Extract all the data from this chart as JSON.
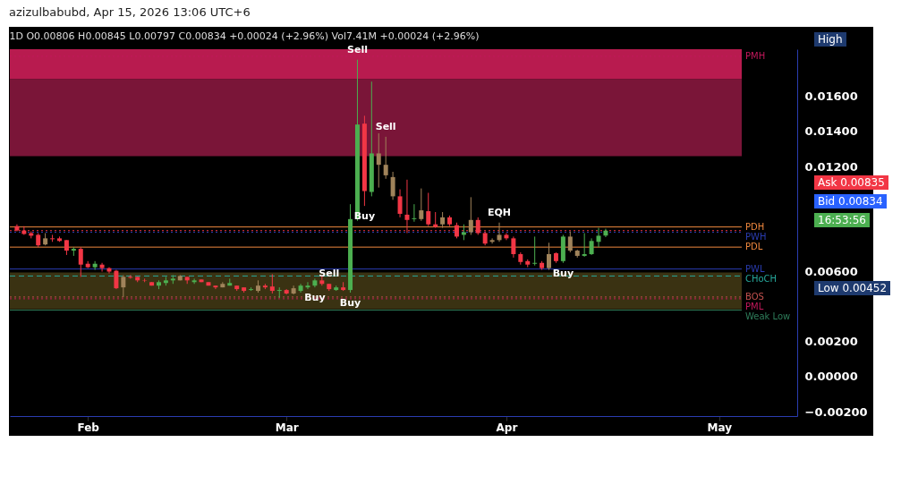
{
  "chart_data": {
    "type": "candlestick",
    "title": "1D O0.00806 H0.00845 L0.00797 C0.00834 +0.00024 (+2.96%) Vol7.41M +0.00024 (+2.96%)",
    "subtitle": "azizulbabubd, Apr 15, 2026 13:06 UTC+6",
    "x": [
      "2026-01-22",
      "2026-01-23",
      "2026-01-24",
      "2026-01-25",
      "2026-01-26",
      "2026-01-27",
      "2026-01-28",
      "2026-01-29",
      "2026-01-30",
      "2026-01-31",
      "2026-02-01",
      "2026-02-02",
      "2026-02-03",
      "2026-02-04",
      "2026-02-05",
      "2026-02-06",
      "2026-02-07",
      "2026-02-08",
      "2026-02-09",
      "2026-02-10",
      "2026-02-11",
      "2026-02-12",
      "2026-02-13",
      "2026-02-14",
      "2026-02-15",
      "2026-02-16",
      "2026-02-17",
      "2026-02-18",
      "2026-02-19",
      "2026-02-20",
      "2026-02-21",
      "2026-02-22",
      "2026-02-23",
      "2026-02-24",
      "2026-02-25",
      "2026-02-26",
      "2026-02-27",
      "2026-02-28",
      "2026-03-01",
      "2026-03-02",
      "2026-03-03",
      "2026-03-04",
      "2026-03-05",
      "2026-03-06",
      "2026-03-07",
      "2026-03-08",
      "2026-03-09",
      "2026-03-10",
      "2026-03-11",
      "2026-03-12",
      "2026-03-13",
      "2026-03-14",
      "2026-03-15",
      "2026-03-16",
      "2026-03-17",
      "2026-03-18",
      "2026-03-19",
      "2026-03-20",
      "2026-03-21",
      "2026-03-22",
      "2026-03-23",
      "2026-03-24",
      "2026-03-25",
      "2026-03-26",
      "2026-03-27",
      "2026-03-28",
      "2026-03-29",
      "2026-03-30",
      "2026-03-31",
      "2026-04-01",
      "2026-04-02",
      "2026-04-03",
      "2026-04-04",
      "2026-04-05",
      "2026-04-06",
      "2026-04-07",
      "2026-04-08",
      "2026-04-09",
      "2026-04-10",
      "2026-04-11",
      "2026-04-12",
      "2026-04-13",
      "2026-04-14",
      "2026-04-15"
    ],
    "ohlc": [
      [
        0.0086,
        0.0087,
        0.0083,
        0.00835
      ],
      [
        0.00835,
        0.0086,
        0.0081,
        0.00815
      ],
      [
        0.0082,
        0.0083,
        0.0079,
        0.00805
      ],
      [
        0.0081,
        0.0082,
        0.0074,
        0.0075
      ],
      [
        0.00755,
        0.0082,
        0.0075,
        0.0079
      ],
      [
        0.0079,
        0.0081,
        0.0077,
        0.00785
      ],
      [
        0.0079,
        0.008,
        0.0077,
        0.00775
      ],
      [
        0.0078,
        0.0078,
        0.00695,
        0.0072
      ],
      [
        0.0072,
        0.0074,
        0.0069,
        0.0073
      ],
      [
        0.0073,
        0.0074,
        0.0057,
        0.0064
      ],
      [
        0.00645,
        0.0066,
        0.0062,
        0.00625
      ],
      [
        0.00625,
        0.0066,
        0.0061,
        0.00645
      ],
      [
        0.0064,
        0.0065,
        0.006,
        0.0062
      ],
      [
        0.0062,
        0.00625,
        0.0059,
        0.006
      ],
      [
        0.00605,
        0.0061,
        0.005,
        0.00505
      ],
      [
        0.0051,
        0.0058,
        0.00455,
        0.0057
      ],
      [
        0.0057,
        0.0058,
        0.0056,
        0.00565
      ],
      [
        0.0057,
        0.0057,
        0.0054,
        0.0055
      ],
      [
        0.0055,
        0.0056,
        0.0054,
        0.00548
      ],
      [
        0.0054,
        0.0054,
        0.0052,
        0.0052
      ],
      [
        0.0052,
        0.0055,
        0.005,
        0.0054
      ],
      [
        0.00535,
        0.0057,
        0.0052,
        0.0055
      ],
      [
        0.0055,
        0.0058,
        0.0053,
        0.0056
      ],
      [
        0.0055,
        0.0058,
        0.0055,
        0.00575
      ],
      [
        0.0057,
        0.0057,
        0.0053,
        0.0055
      ],
      [
        0.0054,
        0.0056,
        0.0053,
        0.0055
      ],
      [
        0.00555,
        0.00555,
        0.0054,
        0.0054
      ],
      [
        0.0054,
        0.0054,
        0.0052,
        0.0052
      ],
      [
        0.0052,
        0.0052,
        0.005,
        0.0051
      ],
      [
        0.0051,
        0.0054,
        0.0051,
        0.0053
      ],
      [
        0.0052,
        0.0056,
        0.0052,
        0.00535
      ],
      [
        0.0052,
        0.0052,
        0.0049,
        0.005
      ],
      [
        0.0051,
        0.0051,
        0.0048,
        0.0049
      ],
      [
        0.00495,
        0.0051,
        0.0049,
        0.005
      ],
      [
        0.0049,
        0.0055,
        0.0048,
        0.0052
      ],
      [
        0.0052,
        0.0053,
        0.005,
        0.0051
      ],
      [
        0.00515,
        0.00585,
        0.00475,
        0.0049
      ],
      [
        0.0049,
        0.0051,
        0.0045,
        0.00495
      ],
      [
        0.00495,
        0.005,
        0.0047,
        0.00475
      ],
      [
        0.00475,
        0.0052,
        0.0047,
        0.00505
      ],
      [
        0.0049,
        0.0053,
        0.0048,
        0.0052
      ],
      [
        0.0051,
        0.0054,
        0.005,
        0.0052
      ],
      [
        0.0052,
        0.0056,
        0.0051,
        0.0055
      ],
      [
        0.0055,
        0.00575,
        0.0052,
        0.0053
      ],
      [
        0.0053,
        0.0053,
        0.0049,
        0.005
      ],
      [
        0.00495,
        0.0052,
        0.0049,
        0.0051
      ],
      [
        0.0051,
        0.0054,
        0.0049,
        0.00495
      ],
      [
        0.00495,
        0.00985,
        0.0048,
        0.009
      ],
      [
        0.009,
        0.0181,
        0.0089,
        0.0144
      ],
      [
        0.01445,
        0.0149,
        0.00975,
        0.0106
      ],
      [
        0.01055,
        0.01685,
        0.0103,
        0.01275
      ],
      [
        0.01275,
        0.0139,
        0.0108,
        0.0121
      ],
      [
        0.0121,
        0.0137,
        0.0113,
        0.0115
      ],
      [
        0.0114,
        0.0117,
        0.0101,
        0.0103
      ],
      [
        0.0103,
        0.0107,
        0.0091,
        0.0093
      ],
      [
        0.00925,
        0.01125,
        0.0082,
        0.00895
      ],
      [
        0.009,
        0.00985,
        0.00885,
        0.00905
      ],
      [
        0.009,
        0.01075,
        0.0089,
        0.0095
      ],
      [
        0.00945,
        0.0105,
        0.0086,
        0.0087
      ],
      [
        0.0087,
        0.0094,
        0.0085,
        0.00855
      ],
      [
        0.0087,
        0.0094,
        0.0085,
        0.0091
      ],
      [
        0.0091,
        0.0092,
        0.0086,
        0.0087
      ],
      [
        0.00865,
        0.0088,
        0.0079,
        0.008
      ],
      [
        0.0081,
        0.0087,
        0.0078,
        0.00825
      ],
      [
        0.00825,
        0.01025,
        0.0081,
        0.00895
      ],
      [
        0.00895,
        0.0091,
        0.0081,
        0.0082
      ],
      [
        0.0082,
        0.0083,
        0.0075,
        0.0076
      ],
      [
        0.0077,
        0.0079,
        0.0076,
        0.0078
      ],
      [
        0.0078,
        0.0088,
        0.0077,
        0.0081
      ],
      [
        0.0081,
        0.0082,
        0.0078,
        0.0079
      ],
      [
        0.0079,
        0.008,
        0.0068,
        0.007
      ],
      [
        0.007,
        0.0071,
        0.0064,
        0.00655
      ],
      [
        0.0066,
        0.0067,
        0.00625,
        0.0064
      ],
      [
        0.00645,
        0.008,
        0.00635,
        0.0065
      ],
      [
        0.0065,
        0.0066,
        0.0061,
        0.0062
      ],
      [
        0.0062,
        0.00765,
        0.0061,
        0.007
      ],
      [
        0.00705,
        0.0071,
        0.0065,
        0.0066
      ],
      [
        0.0066,
        0.0081,
        0.0065,
        0.008
      ],
      [
        0.008,
        0.0083,
        0.0071,
        0.0072
      ],
      [
        0.0072,
        0.00725,
        0.0068,
        0.0069
      ],
      [
        0.0069,
        0.0082,
        0.00685,
        0.007
      ],
      [
        0.007,
        0.0079,
        0.00695,
        0.00775
      ],
      [
        0.0077,
        0.0085,
        0.0074,
        0.00805
      ],
      [
        0.00806,
        0.00845,
        0.00797,
        0.00834
      ]
    ],
    "colors": [
      "#f23645",
      "#f23645",
      "#f23645",
      "#f23645",
      "#a0835a",
      "#f23645",
      "#f23645",
      "#f23645",
      "#4caf50",
      "#f23645",
      "#f23645",
      "#4caf50",
      "#f23645",
      "#f23645",
      "#f23645",
      "#a0835a",
      "#f23645",
      "#f23645",
      "#f23645",
      "#f23645",
      "#4caf50",
      "#4caf50",
      "#4caf50",
      "#a0835a",
      "#f23645",
      "#4caf50",
      "#f23645",
      "#f23645",
      "#f23645",
      "#a0835a",
      "#4caf50",
      "#f23645",
      "#f23645",
      "#4caf50",
      "#a0835a",
      "#f23645",
      "#f23645",
      "#4caf50",
      "#f23645",
      "#a0835a",
      "#4caf50",
      "#4caf50",
      "#4caf50",
      "#f23645",
      "#f23645",
      "#4caf50",
      "#f23645",
      "#4caf50",
      "#4caf50",
      "#f23645",
      "#4caf50",
      "#a0835a",
      "#a0835a",
      "#a0835a",
      "#f23645",
      "#f23645",
      "#4caf50",
      "#a0835a",
      "#f23645",
      "#f23645",
      "#a0835a",
      "#f23645",
      "#f23645",
      "#4caf50",
      "#a0835a",
      "#f23645",
      "#f23645",
      "#a0835a",
      "#a0835a",
      "#f23645",
      "#f23645",
      "#f23645",
      "#f23645",
      "#4caf50",
      "#f23645",
      "#a0835a",
      "#f23645",
      "#4caf50",
      "#a0835a",
      "#a0835a",
      "#4caf50",
      "#4caf50",
      "#4caf50",
      "#4caf50"
    ],
    "xlim": [
      "2026-01-21",
      "2026-05-12"
    ],
    "xticks": [
      {
        "value": "2026-02-01",
        "label": "Feb"
      },
      {
        "value": "2026-03-01",
        "label": "Mar"
      },
      {
        "value": "2026-04-01",
        "label": "Apr"
      },
      {
        "value": "2026-05-01",
        "label": "May"
      }
    ],
    "ylim": [
      -0.00225,
      0.0187
    ],
    "yticks": [
      {
        "value": -0.002,
        "label": "−0.00200"
      },
      {
        "value": 0,
        "label": "0.00000"
      },
      {
        "value": 0.002,
        "label": "0.00200"
      },
      {
        "value": 0.006,
        "label": "0.00600"
      },
      {
        "value": 0.012,
        "label": "0.01200"
      },
      {
        "value": 0.014,
        "label": "0.01400"
      },
      {
        "value": 0.016,
        "label": "0.01600"
      }
    ],
    "bands": [
      {
        "axis": "y",
        "from": 0.0126,
        "to": 0.017,
        "color": "#7a1538"
      },
      {
        "axis": "y",
        "from": 0.017,
        "to": 0.0187,
        "color": "#b81b4f"
      },
      {
        "axis": "y",
        "from": 0.00385,
        "to": 0.00595,
        "color": "#3a3212"
      }
    ],
    "ref_lines": [
      {
        "axis": "y",
        "value": 0.0183,
        "label": "PMH",
        "color": "#c2185b",
        "line_style": "dotted"
      },
      {
        "axis": "y",
        "value": 0.00855,
        "label": "PDH",
        "color": "#f0883e",
        "line_style": "solid"
      },
      {
        "axis": "y",
        "value": 0.00825,
        "label": "PWH",
        "color": "#2a3cb0",
        "line_style": "dotted"
      },
      {
        "axis": "y",
        "value": 0.00834,
        "color": "#f23645",
        "line_style": "dotted"
      },
      {
        "axis": "y",
        "value": 0.0074,
        "label": "PDL",
        "color": "#f0883e",
        "line_style": "solid"
      },
      {
        "axis": "y",
        "value": 0.00615,
        "label": "PWL",
        "color": "#2a3cb0",
        "line_style": "solid"
      },
      {
        "axis": "y",
        "value": 0.00575,
        "label": "CHoCH",
        "color": "#26a69a",
        "line_style": "dashed"
      },
      {
        "axis": "y",
        "value": 0.00455,
        "label": "BOS",
        "color": "#c0504d",
        "line_style": "dotted"
      },
      {
        "axis": "y",
        "value": 0.00445,
        "label": "PML",
        "color": "#c2185b",
        "line_style": "dotted"
      },
      {
        "axis": "y",
        "value": 0.0038,
        "label": "Weak Low",
        "color": "#2e7d5a",
        "line_style": "solid"
      }
    ],
    "annotations": [
      {
        "text": "Sell",
        "x": "2026-03-11",
        "y": 0.0181
      },
      {
        "text": "Sell",
        "x": "2026-03-15",
        "y": 0.0137
      },
      {
        "text": "Buy",
        "x": "2026-03-12",
        "y": 0.00975
      },
      {
        "text": "Sell",
        "x": "2026-03-07",
        "y": 0.0053
      },
      {
        "text": "Buy",
        "x": "2026-03-05",
        "y": 0.0051
      },
      {
        "text": "Buy",
        "x": "2026-03-10",
        "y": 0.0048
      },
      {
        "text": "Buy",
        "x": "2026-04-09",
        "y": 0.0065
      },
      {
        "text": "EQH",
        "x": "2026-03-31",
        "y": 0.0088
      },
      "High",
      "Ask 0.00835",
      "Bid 0.00834",
      "16:53:56",
      "Low 0.00452"
    ]
  }
}
